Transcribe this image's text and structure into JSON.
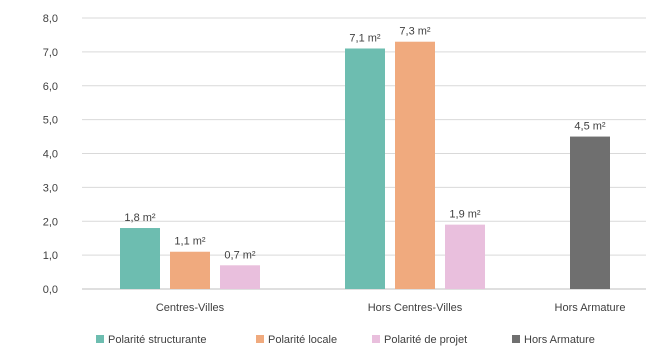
{
  "chart_data": {
    "type": "bar",
    "title": "",
    "xlabel": "",
    "ylabel": "",
    "ylim": [
      0,
      8
    ],
    "y_ticks": [
      "0,0",
      "1,0",
      "2,0",
      "3,0",
      "4,0",
      "5,0",
      "6,0",
      "7,0",
      "8,0"
    ],
    "y_tick_values": [
      0,
      1,
      2,
      3,
      4,
      5,
      6,
      7,
      8
    ],
    "grid": true,
    "legend_position": "bottom",
    "categories": [
      "Centres-Villes",
      "Hors Centres-Villes",
      "Hors Armature"
    ],
    "series": [
      {
        "name": "Polarité structurante",
        "color": "#6dbdb0",
        "values": [
          1.8,
          7.1,
          null
        ],
        "labels": [
          "1,8 m²",
          "7,1 m²",
          ""
        ]
      },
      {
        "name": "Polarité locale",
        "color": "#f0aa7e",
        "values": [
          1.1,
          7.3,
          null
        ],
        "labels": [
          "1,1 m²",
          "7,3 m²",
          ""
        ]
      },
      {
        "name": "Polarité de projet",
        "color": "#e9bfdd",
        "values": [
          0.7,
          1.9,
          null
        ],
        "labels": [
          "0,7 m²",
          "1,9 m²",
          ""
        ]
      },
      {
        "name": "Hors Armature",
        "color": "#6f6f6f",
        "values": [
          null,
          null,
          4.5
        ],
        "labels": [
          "",
          "",
          "4,5 m²"
        ]
      }
    ]
  }
}
